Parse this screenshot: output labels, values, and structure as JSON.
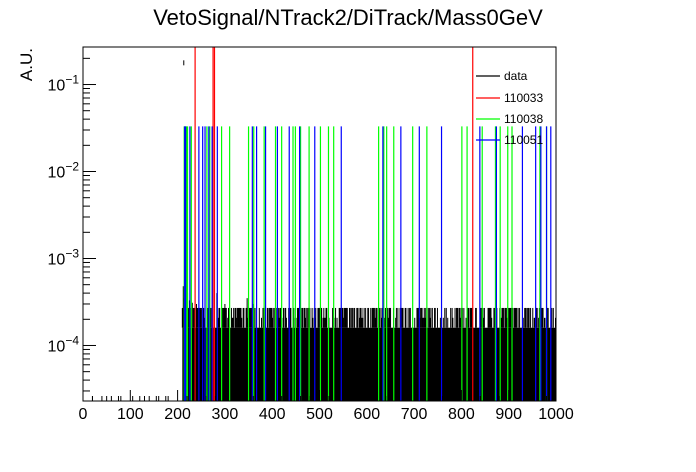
{
  "chart_data": {
    "type": "histogram",
    "title": "VetoSignal/NTrack2/DiTrack/Mass0GeV",
    "xlabel": "",
    "ylabel": "A.U.",
    "xlim": [
      0,
      1000
    ],
    "ylim": [
      2.3e-05,
      0.27
    ],
    "yscale": "log",
    "x_ticks": [
      0,
      100,
      200,
      300,
      400,
      500,
      600,
      700,
      800,
      900,
      1000
    ],
    "x_tick_labels": [
      "0",
      "100",
      "200",
      "300",
      "400",
      "500",
      "600",
      "700",
      "800",
      "900",
      "1000"
    ],
    "y_ticks": [
      0.0001,
      0.001,
      0.01,
      0.1
    ],
    "y_tick_labels": [
      {
        "base": "10",
        "exp": "−4"
      },
      {
        "base": "10",
        "exp": "−3"
      },
      {
        "base": "10",
        "exp": "−2"
      },
      {
        "base": "10",
        "exp": "−1"
      }
    ],
    "legend_position": "top-right",
    "series": [
      {
        "name": "data",
        "color": "#000000",
        "style": "dense-histogram",
        "x_range": [
          210,
          1000
        ],
        "base_level": 0.00016,
        "upper_level": 0.00027,
        "extra_spikes": [
          {
            "x": 212,
            "y": 0.00048
          },
          {
            "x": 214,
            "y": 0.00035
          },
          {
            "x": 216,
            "y": 0.00029
          },
          {
            "x": 218,
            "y": 0.00032
          },
          {
            "x": 221,
            "y": 0.0004
          },
          {
            "x": 225,
            "y": 0.00033
          },
          {
            "x": 231,
            "y": 0.00031
          },
          {
            "x": 240,
            "y": 0.0003
          },
          {
            "x": 255,
            "y": 0.00027
          },
          {
            "x": 283,
            "y": 0.0004
          },
          {
            "x": 300,
            "y": 0.0003
          },
          {
            "x": 347,
            "y": 0.00035
          },
          {
            "x": 360,
            "y": 0.0003
          }
        ],
        "outliers": [
          {
            "x": 212,
            "y": 0.18
          }
        ]
      },
      {
        "name": "110033",
        "color": "#ff0000",
        "style": "spikes",
        "x": [
          237,
          275,
          278,
          824
        ],
        "y": [
          0.27,
          0.27,
          0.27,
          0.27
        ]
      },
      {
        "name": "110038",
        "color": "#00ff00",
        "style": "spikes",
        "x": [
          214,
          216,
          219,
          221,
          229,
          262,
          268,
          293,
          310,
          350,
          361,
          383,
          407,
          420,
          444,
          449,
          460,
          478,
          502,
          519,
          530,
          625,
          636,
          642,
          657,
          697,
          727,
          801,
          812,
          844,
          872,
          882,
          898,
          907,
          966,
          980
        ],
        "y": [
          0.033,
          0.033,
          0.033,
          0.033,
          0.033,
          0.033,
          0.033,
          0.033,
          0.033,
          0.033,
          0.033,
          0.033,
          0.033,
          0.033,
          0.033,
          0.033,
          0.033,
          0.033,
          0.033,
          0.033,
          0.033,
          0.033,
          0.033,
          0.033,
          0.033,
          0.033,
          0.033,
          0.033,
          0.033,
          0.033,
          0.033,
          0.033,
          0.033,
          0.033,
          0.033,
          0.033
        ]
      },
      {
        "name": "110051",
        "color": "#0000ff",
        "style": "spikes",
        "x": [
          215,
          217,
          226,
          245,
          253,
          258,
          266,
          273,
          284,
          358,
          367,
          386,
          411,
          436,
          458,
          490,
          546,
          634,
          672,
          711,
          758,
          839,
          874,
          929,
          957,
          968,
          980,
          989
        ],
        "y": [
          0.033,
          0.033,
          0.033,
          0.033,
          0.033,
          0.033,
          0.033,
          0.033,
          0.033,
          0.033,
          0.033,
          0.033,
          0.033,
          0.033,
          0.033,
          0.033,
          0.033,
          0.033,
          0.033,
          0.033,
          0.033,
          0.033,
          0.033,
          0.033,
          0.033,
          0.033,
          0.033,
          0.033
        ]
      }
    ],
    "below_threshold_marks": [
      20,
      50,
      75,
      105,
      130,
      155,
      175
    ]
  }
}
